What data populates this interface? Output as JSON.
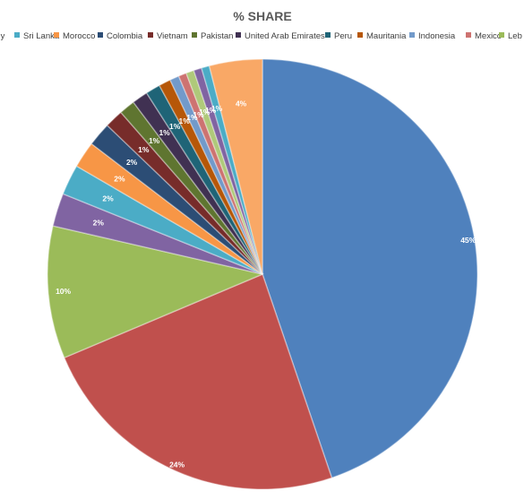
{
  "chart_data": {
    "type": "pie",
    "title": "% SHARE",
    "legend_position": "top",
    "legend_entries": [
      "Italy",
      "Sri Lanka",
      "Morocco",
      "Colombia",
      "Vietnam",
      "Pakistan",
      "United Arab Emirates",
      "Peru",
      "Mauritania",
      "Indonesia",
      "Mexico",
      "Leb"
    ],
    "slices": [
      {
        "value": 45,
        "label": "45%",
        "color": "#4F81BD"
      },
      {
        "value": 24,
        "label": "24%",
        "color": "#C0504D"
      },
      {
        "value": 10,
        "label": "10%",
        "color": "#9BBB59"
      },
      {
        "value": 2.5,
        "label": "2%",
        "color": "#8064A2"
      },
      {
        "value": 2.3,
        "label": "2%",
        "color": "#4BACC6"
      },
      {
        "value": 2.0,
        "label": "2%",
        "color": "#F79646"
      },
      {
        "value": 1.8,
        "label": "2%",
        "color": "#2C4D75"
      },
      {
        "value": 1.4,
        "label": "1%",
        "color": "#772C2A"
      },
      {
        "value": 1.2,
        "label": "1%",
        "color": "#5F7530"
      },
      {
        "value": 1.2,
        "label": "1%",
        "color": "#403152"
      },
      {
        "value": 1.1,
        "label": "1%",
        "color": "#1F6477"
      },
      {
        "value": 0.9,
        "label": "1%",
        "color": "#B65708"
      },
      {
        "value": 0.7,
        "label": "1%",
        "color": "#729ACA"
      },
      {
        "value": 0.6,
        "label": "1%",
        "color": "#CD7371"
      },
      {
        "value": 0.6,
        "label": "1%",
        "color": "#AFC97A"
      },
      {
        "value": 0.6,
        "label": "1%",
        "color": "#8064A2"
      },
      {
        "value": 0.6,
        "label": "1%",
        "color": "#4BACC6"
      },
      {
        "value": 4.0,
        "label": "4%",
        "color": "#F9A866"
      }
    ]
  },
  "legend_colors": [
    "#4BACC6",
    "#4BACC6",
    "#F79646",
    "#2C4D75",
    "#772C2A",
    "#5F7530",
    "#403152",
    "#1F6477",
    "#B65708",
    "#729ACA",
    "#CD7371",
    "#9BBB59"
  ]
}
